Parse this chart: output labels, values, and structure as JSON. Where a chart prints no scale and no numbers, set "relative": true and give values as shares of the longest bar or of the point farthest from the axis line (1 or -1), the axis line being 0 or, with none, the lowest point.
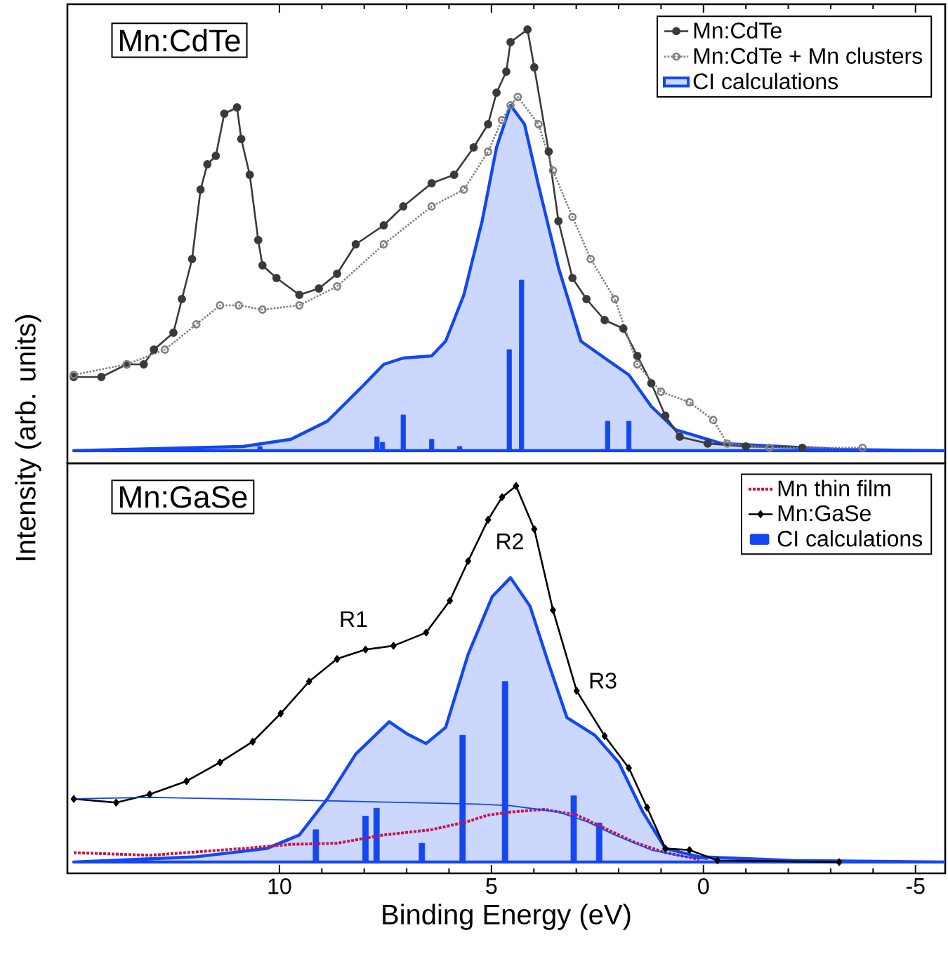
{
  "chart_data": [
    {
      "type": "line",
      "title": "Mn:CdTe",
      "ylabel": "Intensity (arb. units)",
      "relative": true,
      "legend": "top right",
      "tick_labels": false,
      "xlim": [
        15,
        -5.7
      ],
      "xticks": [
        10,
        5,
        0,
        -5
      ],
      "series": [
        {
          "name": "Mn:CdTe",
          "color": "#3a3a3a",
          "marker": "circle",
          "line_style": "solid",
          "x": [
            14.85,
            14.2,
            13.6,
            13.2,
            12.96,
            12.5,
            12.3,
            12.06,
            11.86,
            11.7,
            11.5,
            11.3,
            11.0,
            10.9,
            10.7,
            10.5,
            10.4,
            10.07,
            9.53,
            9.07,
            8.64,
            8.2,
            7.54,
            7.08,
            6.41,
            5.88,
            5.42,
            5.08,
            4.88,
            4.65,
            4.55,
            4.15,
            3.99,
            3.65,
            3.42,
            3.09,
            2.76,
            2.33,
            1.89,
            1.56,
            1.23,
            0.9,
            0.56,
            -0.1,
            -1.0,
            -2.33
          ],
          "values": [
            0.175,
            0.175,
            0.205,
            0.205,
            0.24,
            0.28,
            0.36,
            0.455,
            0.62,
            0.68,
            0.7,
            0.8,
            0.815,
            0.74,
            0.655,
            0.5,
            0.44,
            0.41,
            0.37,
            0.385,
            0.42,
            0.49,
            0.535,
            0.58,
            0.635,
            0.655,
            0.72,
            0.775,
            0.85,
            0.9,
            0.97,
            1.0,
            0.91,
            0.71,
            0.545,
            0.41,
            0.36,
            0.31,
            0.29,
            0.225,
            0.16,
            0.083,
            0.033,
            0.017,
            0.01,
            0.007
          ]
        },
        {
          "name": "Mn:CdTe + Mn clusters",
          "color": "#808080",
          "marker": "circle",
          "line_style": "dotted",
          "x": [
            14.85,
            13.6,
            12.7,
            11.96,
            11.4,
            10.96,
            10.4,
            9.53,
            8.64,
            7.54,
            6.41,
            5.65,
            5.08,
            4.75,
            4.55,
            4.38,
            3.89,
            3.55,
            3.09,
            2.66,
            2.09,
            1.56,
            1.0,
            0.33,
            -0.23,
            -0.56,
            -1.56,
            -3.75
          ],
          "values": [
            0.18,
            0.205,
            0.24,
            0.3,
            0.345,
            0.345,
            0.335,
            0.345,
            0.39,
            0.49,
            0.58,
            0.62,
            0.71,
            0.785,
            0.82,
            0.84,
            0.775,
            0.665,
            0.555,
            0.455,
            0.36,
            0.205,
            0.14,
            0.115,
            0.073,
            0.017,
            0.007,
            0.007
          ]
        },
        {
          "name": "CI calculations",
          "type": "area",
          "color": "#1447f0",
          "x": [
            14.85,
            10.86,
            9.73,
            8.87,
            8.07,
            7.54,
            7.08,
            6.41,
            6.08,
            5.65,
            5.22,
            4.88,
            4.55,
            4.22,
            3.89,
            3.42,
            2.89,
            2.33,
            1.76,
            1.23,
            0.66,
            -0.43,
            -3.2,
            -5.7
          ],
          "values": [
            0,
            0.01,
            0.027,
            0.07,
            0.15,
            0.205,
            0.22,
            0.225,
            0.26,
            0.37,
            0.545,
            0.72,
            0.82,
            0.775,
            0.63,
            0.435,
            0.26,
            0.22,
            0.18,
            0.105,
            0.05,
            0.017,
            0.003,
            0
          ]
        },
        {
          "type": "bar",
          "color": "#1447f0",
          "x": [
            10.46,
            7.7,
            7.57,
            7.08,
            6.41,
            5.75,
            4.58,
            4.29,
            2.26,
            1.76
          ],
          "values": [
            0.01,
            0.033,
            0.02,
            0.085,
            0.027,
            0.01,
            0.24,
            0.405,
            0.07,
            0.07
          ]
        }
      ]
    },
    {
      "type": "line",
      "title": "Mn:GaSe",
      "xlabel": "Binding Energy (eV)",
      "relative": true,
      "legend": "top right",
      "tick_labels": "x",
      "xlim": [
        15,
        -5.7
      ],
      "xticks": [
        10,
        5,
        0,
        -5
      ],
      "annotations": [
        "R1",
        "R2",
        "R3"
      ],
      "series": [
        {
          "name": "Mn thin film",
          "color": "#c8144b",
          "marker": "none",
          "line_style": "dotted",
          "x": [
            14.85,
            13.06,
            10.86,
            9.73,
            8.64,
            7.54,
            6.41,
            5.55,
            5.08,
            4.55,
            3.75,
            2.99,
            2.33,
            1.66,
            0.9,
            0.1
          ],
          "values": [
            0.025,
            0.018,
            0.036,
            0.047,
            0.05,
            0.072,
            0.086,
            0.108,
            0.125,
            0.133,
            0.14,
            0.125,
            0.09,
            0.054,
            0.025,
            0.007
          ]
        },
        {
          "name": "Mn:GaSe",
          "color": "#000000",
          "marker": "diamond",
          "line_style": "solid",
          "x": [
            14.85,
            13.85,
            13.06,
            12.19,
            11.4,
            10.63,
            9.97,
            9.3,
            8.64,
            7.97,
            7.31,
            6.54,
            5.98,
            5.55,
            5.08,
            4.75,
            4.42,
            3.99,
            3.55,
            2.99,
            2.33,
            1.76,
            1.33,
            0.9,
            0.33,
            -0.33,
            -3.2
          ],
          "values": [
            0.168,
            0.158,
            0.18,
            0.215,
            0.265,
            0.32,
            0.395,
            0.48,
            0.54,
            0.565,
            0.575,
            0.61,
            0.695,
            0.8,
            0.91,
            0.97,
            1.0,
            0.885,
            0.67,
            0.455,
            0.335,
            0.25,
            0.145,
            0.036,
            0.032,
            0.004,
            0
          ]
        },
        {
          "type": "area",
          "color": "#1447f0",
          "x": [
            14.85,
            11.96,
            10.3,
            9.53,
            8.87,
            8.2,
            7.41,
            6.98,
            6.54,
            6.08,
            5.55,
            4.98,
            4.55,
            4.09,
            3.65,
            3.22,
            2.56,
            2.0,
            1.43,
            0.9,
            0.1,
            -2.1,
            -5.7
          ],
          "values": [
            0,
            0.014,
            0.036,
            0.072,
            0.168,
            0.287,
            0.373,
            0.34,
            0.315,
            0.358,
            0.552,
            0.706,
            0.756,
            0.68,
            0.527,
            0.384,
            0.337,
            0.265,
            0.133,
            0.036,
            0.014,
            0.004,
            0
          ]
        },
        {
          "color": "#1447f0",
          "marker": "none",
          "line_style": "solid",
          "x": [
            14.85,
            13.06,
            9.73,
            5.32,
            4.55,
            3.42,
            2.76,
            2.09,
            1.23,
            0.43,
            -0.1
          ],
          "values": [
            0.168,
            0.172,
            0.165,
            0.154,
            0.15,
            0.133,
            0.108,
            0.072,
            0.032,
            0.014,
            0.007
          ]
        },
        {
          "name": "CI calculations",
          "type": "bar",
          "color": "#1447f0",
          "x": [
            9.14,
            7.97,
            7.71,
            6.64,
            5.68,
            4.68,
            3.06,
            2.46
          ],
          "values": [
            0.086,
            0.122,
            0.143,
            0.05,
            0.337,
            0.48,
            0.176,
            0.104
          ]
        }
      ]
    }
  ]
}
